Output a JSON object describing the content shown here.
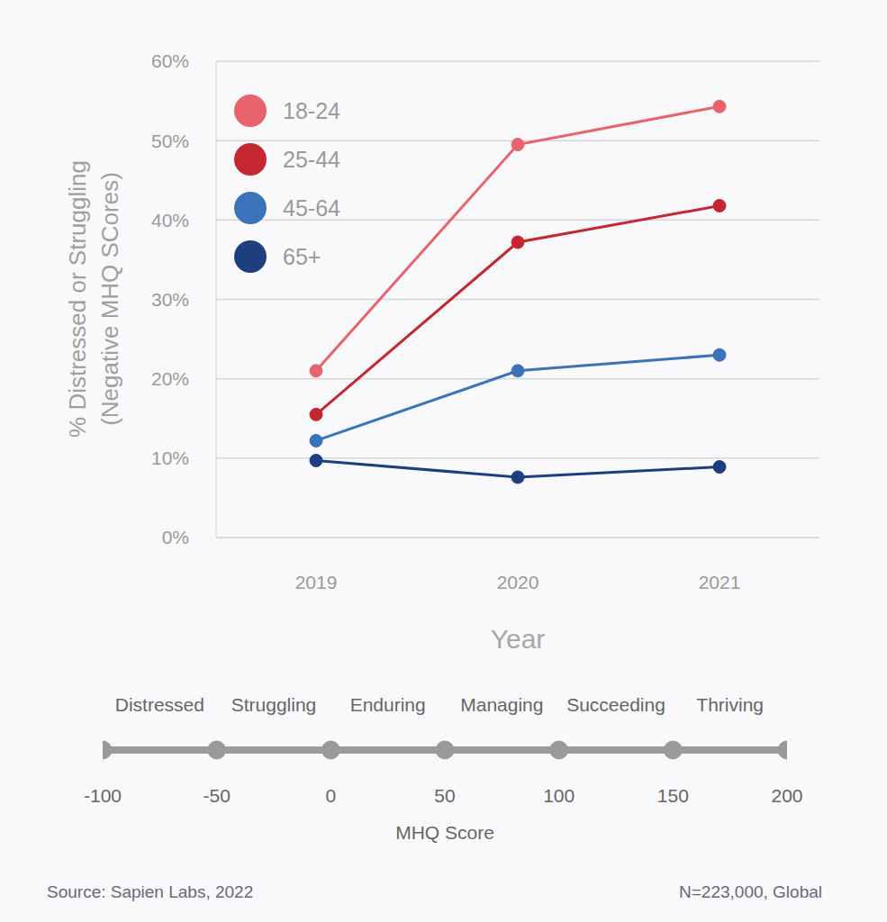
{
  "chart_data": [
    {
      "type": "line",
      "x_label": "Year",
      "y_label": "% Distressed or Struggling (Negative MHQ SCores)",
      "categories": [
        "2019",
        "2020",
        "2021"
      ],
      "series": [
        {
          "name": "18-24",
          "color": "#e8636b",
          "values": [
            21.0,
            49.5,
            54.3
          ]
        },
        {
          "name": "25-44",
          "color": "#c4272f",
          "values": [
            15.5,
            37.2,
            41.8
          ]
        },
        {
          "name": "45-64",
          "color": "#3b73b9",
          "values": [
            12.2,
            21.0,
            23.0
          ]
        },
        {
          "name": "65+",
          "color": "#1d3f80",
          "values": [
            9.7,
            7.6,
            8.9
          ]
        }
      ],
      "ylim": [
        0,
        60
      ],
      "yticks": [
        {
          "value": 0,
          "label": "0%"
        },
        {
          "value": 10,
          "label": "10%"
        },
        {
          "value": 20,
          "label": "20%"
        },
        {
          "value": 30,
          "label": "30%"
        },
        {
          "value": 40,
          "label": "40%"
        },
        {
          "value": 50,
          "label": "50%"
        },
        {
          "value": 60,
          "label": "60%"
        }
      ],
      "grid": true,
      "legend": "upper left",
      "marker": "circle"
    },
    {
      "type": "scale",
      "x_label": "MHQ Score",
      "xlim": [
        -100,
        200
      ],
      "xticks": [
        -100,
        -50,
        0,
        50,
        100,
        150,
        200
      ],
      "categories": [
        "Distressed",
        "Struggling",
        "Enduring",
        "Managing",
        "Succeeding",
        "Thriving"
      ],
      "color": "#9a9a9a",
      "marker": "circle"
    }
  ],
  "source": "Source: Sapien Labs, 2022",
  "note": "N=223,000, Global"
}
